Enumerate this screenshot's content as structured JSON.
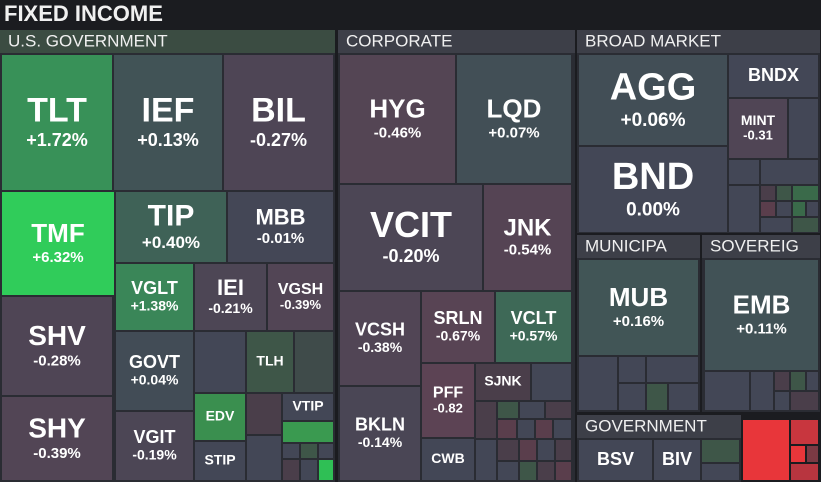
{
  "header": {
    "title": "FIXED INCOME"
  },
  "sectors": [
    {
      "name": "U.S. GOVERNMENT",
      "tiles": [
        {
          "ticker": "TLT",
          "change": "+1.72%"
        },
        {
          "ticker": "IEF",
          "change": "+0.13%"
        },
        {
          "ticker": "BIL",
          "change": "-0.27%"
        },
        {
          "ticker": "TMF",
          "change": "+6.32%"
        },
        {
          "ticker": "TIP",
          "change": "+0.40%"
        },
        {
          "ticker": "MBB",
          "change": "-0.01%"
        },
        {
          "ticker": "SHV",
          "change": "-0.28%"
        },
        {
          "ticker": "SHY",
          "change": "-0.39%"
        },
        {
          "ticker": "VGLT",
          "change": "+1.38%"
        },
        {
          "ticker": "IEI",
          "change": "-0.21%"
        },
        {
          "ticker": "VGSH",
          "change": "-0.39%"
        },
        {
          "ticker": "GOVT",
          "change": "+0.04%"
        },
        {
          "ticker": "VGIT",
          "change": "-0.19%"
        }
      ]
    },
    {
      "name": "CORPORATE",
      "tiles": [
        {
          "ticker": "HYG",
          "change": "-0.46%"
        },
        {
          "ticker": "LQD",
          "change": "+0.07%"
        },
        {
          "ticker": "VCIT",
          "change": "-0.20%"
        },
        {
          "ticker": "JNK",
          "change": "-0.54%"
        },
        {
          "ticker": "VCSH",
          "change": "-0.38%"
        },
        {
          "ticker": "SRLN",
          "change": "-0.67%"
        },
        {
          "ticker": "VCLT",
          "change": "+0.57%"
        },
        {
          "ticker": "BKLN",
          "change": "-0.14%"
        },
        {
          "ticker": "PFF",
          "change": "-0.82"
        }
      ]
    },
    {
      "name": "BROAD MARKET",
      "tiles": [
        {
          "ticker": "AGG",
          "change": "+0.06%"
        },
        {
          "ticker": "BND",
          "change": "0.00%"
        },
        {
          "ticker": "MINT",
          "change": "-0.31"
        }
      ]
    },
    {
      "name": "MUNICIPA",
      "tiles": [
        {
          "ticker": "MUB",
          "change": "+0.16%"
        }
      ]
    },
    {
      "name": "SOVEREIG",
      "tiles": [
        {
          "ticker": "EMB",
          "change": "+0.11%"
        }
      ]
    },
    {
      "name": "GOVERNMENT",
      "tiles": []
    }
  ],
  "small_labels": [
    "TLH",
    "EDV",
    "VTIP",
    "STIP",
    "SJNK",
    "CWB",
    "BNDX",
    "BSV",
    "BIV"
  ]
}
